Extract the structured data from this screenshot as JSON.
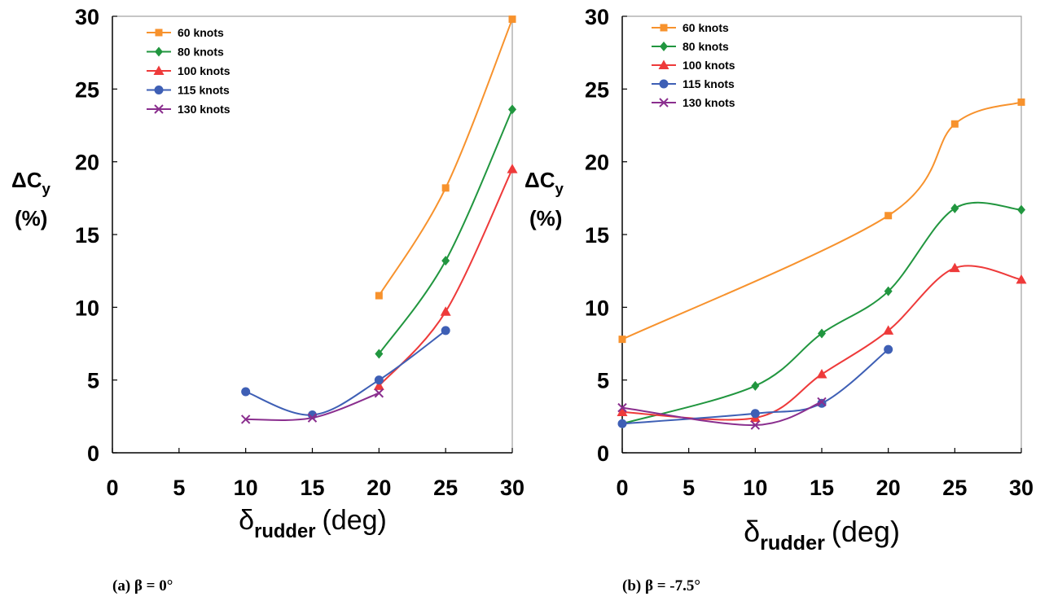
{
  "chart_data": [
    {
      "type": "line",
      "caption": "(a) β = 0°",
      "ylabel_main": "ΔC",
      "ylabel_sub": "y",
      "ylabel_unit": "(%)",
      "xlabel_main": "δ",
      "xlabel_sub": "rudder",
      "xlabel_unit": "(deg)",
      "xlim": [
        0,
        30
      ],
      "ylim": [
        0,
        30
      ],
      "xticks": [
        0,
        5,
        10,
        15,
        20,
        25,
        30
      ],
      "yticks": [
        0,
        5,
        10,
        15,
        20,
        25,
        30
      ],
      "grid": false,
      "legend_position": "top-left",
      "series": [
        {
          "name": "60 knots",
          "color": "#F7922D",
          "marker": "square",
          "x": [
            20,
            25,
            30
          ],
          "y": [
            10.8,
            18.2,
            29.8
          ]
        },
        {
          "name": "80 knots",
          "color": "#21963F",
          "marker": "diamond",
          "x": [
            20,
            25,
            30
          ],
          "y": [
            6.8,
            13.2,
            23.6
          ]
        },
        {
          "name": "100 knots",
          "color": "#EE3A3A",
          "marker": "triangle",
          "x": [
            20,
            25,
            30
          ],
          "y": [
            4.6,
            9.7,
            19.5
          ]
        },
        {
          "name": "115 knots",
          "color": "#3E5FB5",
          "marker": "circle",
          "x": [
            10,
            15,
            20,
            25
          ],
          "y": [
            4.2,
            2.6,
            5.0,
            8.4
          ]
        },
        {
          "name": "130 knots",
          "color": "#8A2E8E",
          "marker": "x",
          "x": [
            10,
            15,
            20
          ],
          "y": [
            2.3,
            2.4,
            4.1
          ]
        }
      ]
    },
    {
      "type": "line",
      "caption": "(b) β = -7.5°",
      "ylabel_main": "ΔC",
      "ylabel_sub": "y",
      "ylabel_unit": "(%)",
      "xlabel_main": "δ",
      "xlabel_sub": "rudder",
      "xlabel_unit": "(deg)",
      "xlim": [
        0,
        30
      ],
      "ylim": [
        0,
        30
      ],
      "xticks": [
        0,
        5,
        10,
        15,
        20,
        25,
        30
      ],
      "yticks": [
        0,
        5,
        10,
        15,
        20,
        25,
        30
      ],
      "grid": false,
      "legend_position": "top-left",
      "series": [
        {
          "name": "60 knots",
          "color": "#F7922D",
          "marker": "square",
          "x": [
            0,
            20,
            25,
            30
          ],
          "y": [
            7.8,
            16.3,
            22.6,
            24.1
          ]
        },
        {
          "name": "80 knots",
          "color": "#21963F",
          "marker": "diamond",
          "x": [
            0,
            10,
            15,
            20,
            25,
            30
          ],
          "y": [
            2.0,
            4.6,
            8.2,
            11.1,
            16.8,
            16.7
          ]
        },
        {
          "name": "100 knots",
          "color": "#EE3A3A",
          "marker": "triangle",
          "x": [
            0,
            10,
            15,
            20,
            25,
            30
          ],
          "y": [
            2.8,
            2.4,
            5.4,
            8.4,
            12.7,
            11.9
          ]
        },
        {
          "name": "115 knots",
          "color": "#3E5FB5",
          "marker": "circle",
          "x": [
            0,
            10,
            15,
            20
          ],
          "y": [
            2.0,
            2.7,
            3.4,
            7.1
          ]
        },
        {
          "name": "130 knots",
          "color": "#8A2E8E",
          "marker": "x",
          "x": [
            0,
            10,
            15
          ],
          "y": [
            3.1,
            1.9,
            3.5
          ]
        }
      ]
    }
  ]
}
